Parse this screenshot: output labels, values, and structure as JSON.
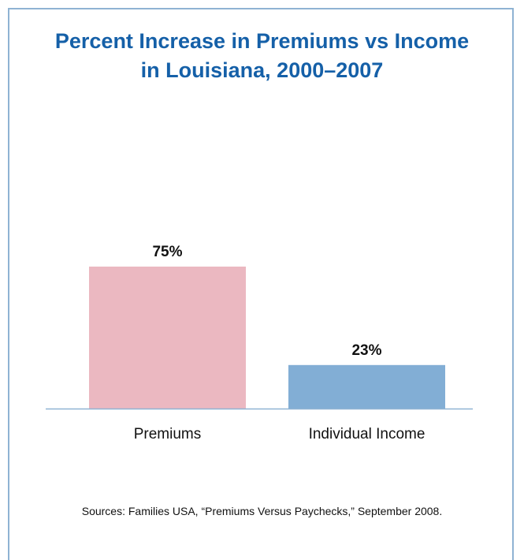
{
  "chart_data": {
    "type": "bar",
    "title_lines": [
      "Percent Increase in Premiums vs Income",
      "in Louisiana, 2000–2007"
    ],
    "categories": [
      "Premiums",
      "Individual Income"
    ],
    "values": [
      75,
      23
    ],
    "value_labels": [
      "75%",
      "23%"
    ],
    "bar_colors": [
      "#ebb8c1",
      "#82aed5"
    ],
    "axis_color": "#8fb3d3",
    "ylim": [
      0,
      100
    ],
    "grid": false,
    "xlabel": "",
    "ylabel": ""
  },
  "source": "Sources: Families USA, “Premiums Versus Paychecks,” September 2008."
}
